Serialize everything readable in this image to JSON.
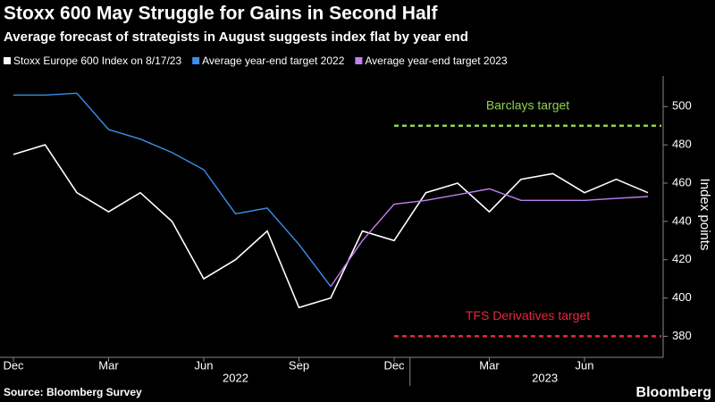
{
  "chart_data": {
    "type": "line",
    "title": "Stoxx 600 May Struggle for Gains in Second Half",
    "subtitle": "Average forecast of strategists in August suggests index flat by year end",
    "source": "Source: Bloomberg Survey",
    "brand": "Bloomberg",
    "y_label": "Index points",
    "x": [
      "2021-12",
      "2022-01",
      "2022-02",
      "2022-03",
      "2022-04",
      "2022-05",
      "2022-06",
      "2022-07",
      "2022-08",
      "2022-09",
      "2022-10",
      "2022-11",
      "2022-12",
      "2023-01",
      "2023-02",
      "2023-03",
      "2023-04",
      "2023-05",
      "2023-06",
      "2023-07",
      "2023-08"
    ],
    "series": [
      {
        "name": "Stoxx Europe 600 Index on 8/17/23",
        "color": "#ffffff",
        "values": [
          475,
          480,
          455,
          445,
          455,
          440,
          410,
          420,
          435,
          395,
          400,
          435,
          430,
          455,
          460,
          445,
          462,
          465,
          455,
          462,
          455
        ]
      },
      {
        "name": "Average year-end target 2022",
        "color": "#3b8eea",
        "values": [
          506,
          506,
          507,
          488,
          483,
          476,
          467,
          444,
          447,
          428,
          406,
          null,
          null,
          null,
          null,
          null,
          null,
          null,
          null,
          null,
          null
        ]
      },
      {
        "name": "Average year-end target 2023",
        "color": "#c080f0",
        "values": [
          null,
          null,
          null,
          null,
          null,
          null,
          null,
          null,
          null,
          null,
          406,
          430,
          449,
          451,
          454,
          457,
          451,
          451,
          451,
          452,
          453
        ]
      }
    ],
    "reference_lines": [
      {
        "label": "Barclays target",
        "value": 490,
        "color": "#8fd14f",
        "start": "2022-12"
      },
      {
        "label": "TFS Derivatives target",
        "value": 380,
        "color": "#e8283c",
        "start": "2022-12"
      }
    ],
    "xlim": [
      "2021-12",
      "2023-08"
    ],
    "xticks": [
      {
        "value": "2021-12",
        "label": "Dec"
      },
      {
        "value": "2022-03",
        "label": "Mar"
      },
      {
        "value": "2022-06",
        "label": "Jun"
      },
      {
        "value": "2022-09",
        "label": "Sep"
      },
      {
        "value": "2022-12",
        "label": "Dec"
      },
      {
        "value": "2023-03",
        "label": "Mar"
      },
      {
        "value": "2023-06",
        "label": "Jun"
      }
    ],
    "years": [
      "2022",
      "2023"
    ],
    "ylim": [
      369,
      516
    ],
    "yticks": [
      380,
      400,
      420,
      440,
      460,
      480,
      500
    ]
  }
}
